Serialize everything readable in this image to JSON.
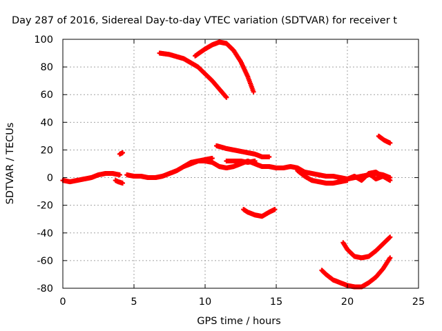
{
  "chart_data": {
    "type": "scatter",
    "title": "Day 287 of 2016, Sidereal Day-to-day VTEC variation (SDTVAR) for receiver t",
    "xlabel": "GPS time / hours",
    "ylabel": "SDTVAR / TECUs",
    "xlim": [
      0,
      25
    ],
    "ylim": [
      -80,
      100
    ],
    "xticks": [
      "0",
      "5",
      "10",
      "15",
      "20",
      "25"
    ],
    "yticks": [
      "-80",
      "-60",
      "-40",
      "-20",
      "0",
      "20",
      "40",
      "60",
      "80",
      "100"
    ],
    "grid": true,
    "legend": "none",
    "marker": "plus",
    "color": "#ff0000",
    "series": [
      {
        "points": [
          [
            0,
            -2
          ],
          [
            0.5,
            -3
          ],
          [
            1,
            -2
          ],
          [
            1.5,
            -1
          ],
          [
            2,
            0
          ],
          [
            2.5,
            2
          ],
          [
            3,
            3
          ],
          [
            3.5,
            3
          ],
          [
            4,
            2
          ]
        ]
      },
      {
        "points": [
          [
            3.7,
            -2
          ],
          [
            3.9,
            -3
          ],
          [
            4.2,
            -4
          ]
        ]
      },
      {
        "points": [
          [
            4.0,
            17
          ],
          [
            4.2,
            18
          ]
        ]
      },
      {
        "points": [
          [
            4.5,
            2
          ],
          [
            5,
            1
          ],
          [
            5.5,
            1
          ],
          [
            6,
            0
          ],
          [
            6.5,
            0
          ],
          [
            7,
            1
          ],
          [
            7.5,
            3
          ],
          [
            8,
            5
          ],
          [
            8.5,
            8
          ],
          [
            9,
            10
          ],
          [
            9.5,
            12
          ],
          [
            10,
            12
          ],
          [
            10.5,
            11
          ],
          [
            11,
            8
          ],
          [
            11.5,
            7
          ],
          [
            12,
            8
          ],
          [
            12.5,
            10
          ],
          [
            13,
            12
          ],
          [
            13.5,
            10
          ],
          [
            14,
            8
          ],
          [
            14.5,
            8
          ],
          [
            15,
            7
          ],
          [
            15.5,
            7
          ],
          [
            16,
            8
          ],
          [
            16.5,
            7
          ],
          [
            17,
            4
          ],
          [
            17.5,
            3
          ],
          [
            18,
            2
          ],
          [
            18.5,
            1
          ],
          [
            19,
            1
          ],
          [
            19.5,
            0
          ],
          [
            20,
            -1
          ],
          [
            20.5,
            0
          ],
          [
            21,
            1
          ],
          [
            21.5,
            2
          ],
          [
            22,
            3
          ],
          [
            22.5,
            2
          ],
          [
            23,
            0
          ]
        ]
      },
      {
        "points": [
          [
            8.5,
            8
          ],
          [
            9,
            11
          ],
          [
            9.5,
            12
          ],
          [
            10,
            13
          ],
          [
            10.5,
            14
          ]
        ]
      },
      {
        "points": [
          [
            11.5,
            12
          ],
          [
            12,
            12
          ],
          [
            12.5,
            12
          ],
          [
            13,
            11
          ],
          [
            13.5,
            12
          ]
        ]
      },
      {
        "points": [
          [
            16.5,
            5
          ],
          [
            17,
            1
          ],
          [
            17.5,
            -2
          ],
          [
            18,
            -3
          ],
          [
            18.5,
            -4
          ],
          [
            19,
            -4
          ],
          [
            19.5,
            -3
          ],
          [
            20,
            -2
          ]
        ]
      },
      {
        "points": [
          [
            20,
            -1
          ],
          [
            20.5,
            1
          ],
          [
            21,
            -2
          ],
          [
            21.5,
            3
          ],
          [
            22,
            -1
          ],
          [
            22.5,
            1
          ],
          [
            23,
            -2
          ]
        ]
      },
      {
        "points": [
          [
            21.5,
            3
          ],
          [
            22,
            4
          ],
          [
            22.3,
            2
          ]
        ]
      },
      {
        "points": [
          [
            6.8,
            90
          ],
          [
            7.5,
            89
          ],
          [
            8.5,
            86
          ],
          [
            9.5,
            80
          ],
          [
            10.5,
            70
          ],
          [
            11,
            64
          ],
          [
            11.5,
            58
          ]
        ]
      },
      {
        "points": [
          [
            9.3,
            88
          ],
          [
            10,
            93
          ],
          [
            10.5,
            96
          ],
          [
            11,
            98
          ],
          [
            11.5,
            97
          ],
          [
            12,
            92
          ],
          [
            12.5,
            84
          ],
          [
            13,
            73
          ],
          [
            13.4,
            62
          ]
        ]
      },
      {
        "points": [
          [
            10.8,
            23
          ],
          [
            11.5,
            21
          ],
          [
            12,
            20
          ],
          [
            12.5,
            19
          ],
          [
            13,
            18
          ],
          [
            13.5,
            17
          ],
          [
            14,
            15
          ],
          [
            14.5,
            15
          ]
        ]
      },
      {
        "points": [
          [
            12.7,
            -23
          ],
          [
            13,
            -25
          ],
          [
            13.5,
            -27
          ],
          [
            14,
            -28
          ],
          [
            14.5,
            -25
          ],
          [
            14.9,
            -23
          ]
        ]
      },
      {
        "points": [
          [
            19.7,
            -47
          ],
          [
            20,
            -52
          ],
          [
            20.5,
            -57
          ],
          [
            21,
            -58
          ],
          [
            21.5,
            -57
          ],
          [
            22,
            -53
          ],
          [
            22.5,
            -48
          ],
          [
            23,
            -43
          ]
        ]
      },
      {
        "points": [
          [
            18.2,
            -67
          ],
          [
            18.5,
            -70
          ],
          [
            19,
            -74
          ],
          [
            19.5,
            -76
          ],
          [
            20,
            -78
          ],
          [
            20.5,
            -79
          ],
          [
            21,
            -79
          ],
          [
            21.5,
            -76
          ],
          [
            22,
            -72
          ],
          [
            22.5,
            -66
          ],
          [
            23,
            -58
          ]
        ]
      },
      {
        "points": [
          [
            22.2,
            30
          ],
          [
            22.6,
            27
          ],
          [
            23,
            25
          ]
        ]
      }
    ]
  }
}
